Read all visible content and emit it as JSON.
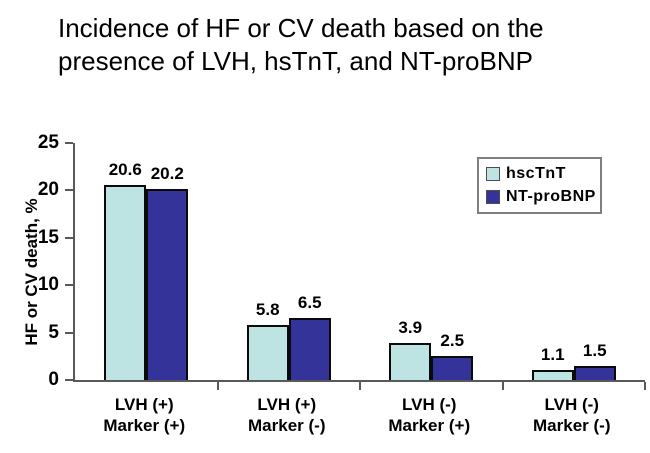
{
  "title": "Incidence of HF or CV death based on the\npresence of LVH, hsTnT, and NT-proBNP",
  "colors": {
    "hscTnT_bar": "#BEE3E3",
    "NT_proBNP_bar": "#333399",
    "bar_border": "#0a0a0a",
    "axis": "#595959",
    "text": "#000000",
    "background": "#ffffff"
  },
  "chart_data": {
    "type": "bar",
    "title": "Incidence of HF or CV death based on the presence of LVH, hsTnT, and NT-proBNP",
    "xlabel": "",
    "ylabel": "HF or CV death, %",
    "ylim": [
      0,
      25
    ],
    "yticks": [
      0,
      5,
      10,
      15,
      20,
      25
    ],
    "grid": false,
    "legend_position": "top-right",
    "bar_value_labels": true,
    "categories": [
      "LVH (+)\nMarker (+)",
      "LVH (+)\nMarker (-)",
      "LVH (-)\nMarker (+)",
      "LVH (-)\nMarker (-)"
    ],
    "series": [
      {
        "name": "hscTnT",
        "color": "#BEE3E3",
        "values": [
          20.6,
          5.8,
          3.9,
          1.1
        ]
      },
      {
        "name": "NT-proBNP",
        "color": "#333399",
        "values": [
          20.2,
          6.5,
          2.5,
          1.5
        ]
      }
    ],
    "axis_color": "#595959"
  }
}
